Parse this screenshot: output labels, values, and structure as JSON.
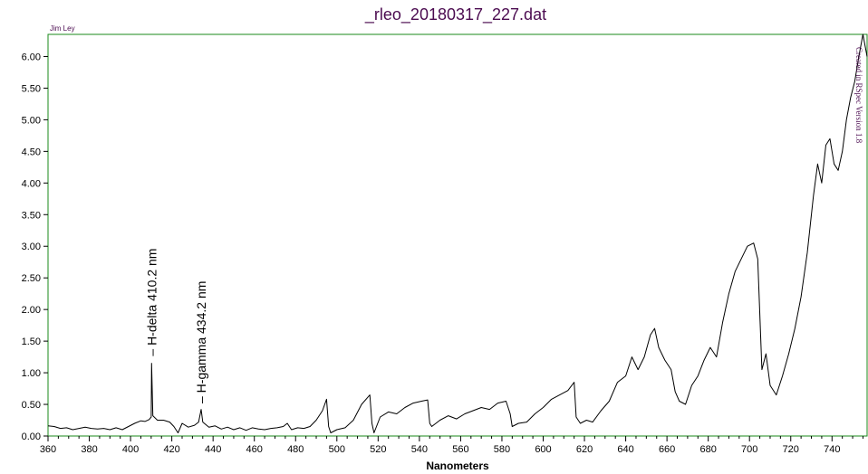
{
  "chart_data": {
    "type": "line",
    "title": "_rleo_20180317_227.dat",
    "xlabel": "Nanometers",
    "ylabel": "",
    "xlim": [
      360,
      757
    ],
    "ylim": [
      0,
      6.35
    ],
    "grid": false,
    "author": "Jim Ley",
    "credit": "Created in RSpec Version 1.8",
    "x_ticks": [
      "360",
      "380",
      "400",
      "420",
      "440",
      "460",
      "480",
      "500",
      "520",
      "540",
      "560",
      "580",
      "600",
      "620",
      "640",
      "660",
      "680",
      "700",
      "720",
      "740"
    ],
    "y_ticks": [
      "0.00",
      "0.50",
      "1.00",
      "1.50",
      "2.00",
      "2.50",
      "3.00",
      "3.50",
      "4.00",
      "4.50",
      "5.00",
      "5.50",
      "6.00"
    ],
    "annotations": [
      {
        "x": 410.2,
        "y": 1.15,
        "text": "– H-delta 410.2 nm"
      },
      {
        "x": 434.2,
        "y": 0.4,
        "text": "– H-gamma 434.2 nm"
      }
    ],
    "series": [
      {
        "color": "#000000",
        "points": [
          [
            360,
            0.16
          ],
          [
            363,
            0.15
          ],
          [
            366,
            0.12
          ],
          [
            369,
            0.13
          ],
          [
            372,
            0.1
          ],
          [
            375,
            0.12
          ],
          [
            378,
            0.14
          ],
          [
            381,
            0.12
          ],
          [
            384,
            0.11
          ],
          [
            387,
            0.12
          ],
          [
            390,
            0.1
          ],
          [
            393,
            0.13
          ],
          [
            396,
            0.1
          ],
          [
            399,
            0.15
          ],
          [
            402,
            0.2
          ],
          [
            405,
            0.24
          ],
          [
            407,
            0.23
          ],
          [
            409,
            0.26
          ],
          [
            410,
            0.3
          ],
          [
            410.2,
            1.15
          ],
          [
            410.8,
            0.32
          ],
          [
            413,
            0.25
          ],
          [
            416,
            0.25
          ],
          [
            419,
            0.22
          ],
          [
            421,
            0.15
          ],
          [
            423,
            0.05
          ],
          [
            425,
            0.2
          ],
          [
            428,
            0.14
          ],
          [
            431,
            0.17
          ],
          [
            433,
            0.22
          ],
          [
            434.2,
            0.42
          ],
          [
            435,
            0.22
          ],
          [
            438,
            0.14
          ],
          [
            441,
            0.16
          ],
          [
            444,
            0.11
          ],
          [
            447,
            0.14
          ],
          [
            450,
            0.1
          ],
          [
            453,
            0.13
          ],
          [
            456,
            0.09
          ],
          [
            459,
            0.13
          ],
          [
            462,
            0.11
          ],
          [
            465,
            0.1
          ],
          [
            468,
            0.12
          ],
          [
            471,
            0.13
          ],
          [
            474,
            0.15
          ],
          [
            476,
            0.2
          ],
          [
            478,
            0.1
          ],
          [
            481,
            0.13
          ],
          [
            484,
            0.12
          ],
          [
            487,
            0.15
          ],
          [
            490,
            0.25
          ],
          [
            493,
            0.4
          ],
          [
            495,
            0.58
          ],
          [
            496,
            0.15
          ],
          [
            497,
            0.05
          ],
          [
            500,
            0.1
          ],
          [
            504,
            0.13
          ],
          [
            508,
            0.25
          ],
          [
            512,
            0.5
          ],
          [
            516,
            0.65
          ],
          [
            517,
            0.2
          ],
          [
            518,
            0.05
          ],
          [
            521,
            0.3
          ],
          [
            525,
            0.38
          ],
          [
            529,
            0.35
          ],
          [
            533,
            0.45
          ],
          [
            537,
            0.52
          ],
          [
            541,
            0.55
          ],
          [
            544,
            0.57
          ],
          [
            545,
            0.2
          ],
          [
            546,
            0.15
          ],
          [
            550,
            0.25
          ],
          [
            554,
            0.32
          ],
          [
            558,
            0.27
          ],
          [
            562,
            0.35
          ],
          [
            566,
            0.4
          ],
          [
            570,
            0.45
          ],
          [
            574,
            0.42
          ],
          [
            578,
            0.52
          ],
          [
            582,
            0.55
          ],
          [
            584,
            0.35
          ],
          [
            585,
            0.15
          ],
          [
            588,
            0.2
          ],
          [
            592,
            0.22
          ],
          [
            596,
            0.35
          ],
          [
            600,
            0.45
          ],
          [
            604,
            0.58
          ],
          [
            608,
            0.65
          ],
          [
            612,
            0.72
          ],
          [
            615,
            0.85
          ],
          [
            616,
            0.3
          ],
          [
            618,
            0.2
          ],
          [
            621,
            0.25
          ],
          [
            624,
            0.22
          ],
          [
            628,
            0.4
          ],
          [
            632,
            0.55
          ],
          [
            636,
            0.85
          ],
          [
            640,
            0.95
          ],
          [
            643,
            1.25
          ],
          [
            646,
            1.05
          ],
          [
            649,
            1.25
          ],
          [
            652,
            1.6
          ],
          [
            654,
            1.7
          ],
          [
            656,
            1.4
          ],
          [
            659,
            1.2
          ],
          [
            662,
            1.05
          ],
          [
            664,
            0.7
          ],
          [
            666,
            0.55
          ],
          [
            669,
            0.5
          ],
          [
            672,
            0.8
          ],
          [
            675,
            0.95
          ],
          [
            678,
            1.2
          ],
          [
            681,
            1.4
          ],
          [
            684,
            1.25
          ],
          [
            687,
            1.8
          ],
          [
            690,
            2.25
          ],
          [
            693,
            2.6
          ],
          [
            696,
            2.8
          ],
          [
            699,
            3.0
          ],
          [
            702,
            3.05
          ],
          [
            704,
            2.8
          ],
          [
            706,
            1.05
          ],
          [
            708,
            1.3
          ],
          [
            710,
            0.8
          ],
          [
            713,
            0.65
          ],
          [
            716,
            0.95
          ],
          [
            719,
            1.3
          ],
          [
            722,
            1.7
          ],
          [
            725,
            2.2
          ],
          [
            728,
            2.9
          ],
          [
            731,
            3.8
          ],
          [
            733,
            4.3
          ],
          [
            735,
            4.0
          ],
          [
            737,
            4.6
          ],
          [
            739,
            4.7
          ],
          [
            741,
            4.3
          ],
          [
            743,
            4.2
          ],
          [
            745,
            4.5
          ],
          [
            747,
            5.0
          ],
          [
            749,
            5.35
          ],
          [
            751,
            5.6
          ],
          [
            753,
            6.0
          ],
          [
            755,
            6.35
          ],
          [
            757,
            6.0
          ]
        ]
      }
    ]
  }
}
